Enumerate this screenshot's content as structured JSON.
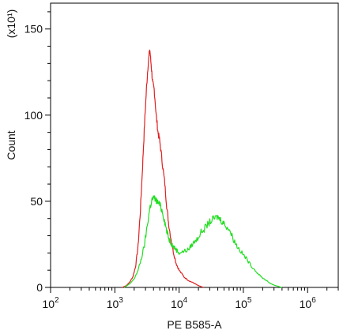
{
  "chart_data": {
    "type": "line",
    "xlabel": "PE B585-A",
    "ylabel": "Count",
    "y_multiplier_label": "(x10¹)",
    "x_scale": "log",
    "xlim": [
      100,
      3000000
    ],
    "ylim": [
      0,
      165
    ],
    "x_ticks": [
      {
        "base": "10",
        "exp": "2",
        "value": 100
      },
      {
        "base": "10",
        "exp": "3",
        "value": 1000
      },
      {
        "base": "10",
        "exp": "4",
        "value": 10000
      },
      {
        "base": "10",
        "exp": "5",
        "value": 100000
      },
      {
        "base": "10",
        "exp": "6",
        "value": 1000000
      }
    ],
    "y_ticks": [
      {
        "label": "0",
        "value": 0
      },
      {
        "label": "50",
        "value": 50
      },
      {
        "label": "100",
        "value": 100
      },
      {
        "label": "150",
        "value": 150
      }
    ],
    "grid": false,
    "legend": "none",
    "series": [
      {
        "color": "#e02020",
        "points": [
          [
            1300,
            0
          ],
          [
            1500,
            1
          ],
          [
            1700,
            3
          ],
          [
            1900,
            6
          ],
          [
            2100,
            12
          ],
          [
            2300,
            24
          ],
          [
            2500,
            45
          ],
          [
            2700,
            70
          ],
          [
            2900,
            95
          ],
          [
            3100,
            115
          ],
          [
            3300,
            130
          ],
          [
            3500,
            138
          ],
          [
            3700,
            128
          ],
          [
            3900,
            118
          ],
          [
            4100,
            115
          ],
          [
            4400,
            100
          ],
          [
            4700,
            90
          ],
          [
            5000,
            85
          ],
          [
            5500,
            72
          ],
          [
            6000,
            60
          ],
          [
            6500,
            45
          ],
          [
            7000,
            35
          ],
          [
            8000,
            22
          ],
          [
            9000,
            14
          ],
          [
            10000,
            10
          ],
          [
            12000,
            6
          ],
          [
            14000,
            4
          ],
          [
            16000,
            3
          ],
          [
            18000,
            2
          ],
          [
            20000,
            1
          ],
          [
            24000,
            0
          ]
        ]
      },
      {
        "color": "#22dd22",
        "points": [
          [
            1400,
            0
          ],
          [
            1700,
            2
          ],
          [
            2000,
            5
          ],
          [
            2300,
            10
          ],
          [
            2600,
            17
          ],
          [
            2900,
            25
          ],
          [
            3200,
            36
          ],
          [
            3500,
            46
          ],
          [
            3800,
            51
          ],
          [
            4100,
            52
          ],
          [
            4500,
            50
          ],
          [
            5000,
            48
          ],
          [
            5500,
            44
          ],
          [
            6000,
            38
          ],
          [
            6500,
            32
          ],
          [
            7000,
            28
          ],
          [
            7500,
            26
          ],
          [
            8000,
            24
          ],
          [
            9000,
            22
          ],
          [
            10000,
            20
          ],
          [
            12000,
            21
          ],
          [
            14000,
            22
          ],
          [
            16000,
            25
          ],
          [
            19000,
            28
          ],
          [
            22000,
            32
          ],
          [
            26000,
            35
          ],
          [
            30000,
            38
          ],
          [
            35000,
            40
          ],
          [
            40000,
            41
          ],
          [
            45000,
            39
          ],
          [
            50000,
            37
          ],
          [
            60000,
            34
          ],
          [
            70000,
            28
          ],
          [
            80000,
            24
          ],
          [
            95000,
            20
          ],
          [
            110000,
            17
          ],
          [
            130000,
            13
          ],
          [
            160000,
            9
          ],
          [
            190000,
            6
          ],
          [
            230000,
            4
          ],
          [
            270000,
            2
          ],
          [
            320000,
            1
          ],
          [
            400000,
            0
          ]
        ]
      }
    ]
  }
}
